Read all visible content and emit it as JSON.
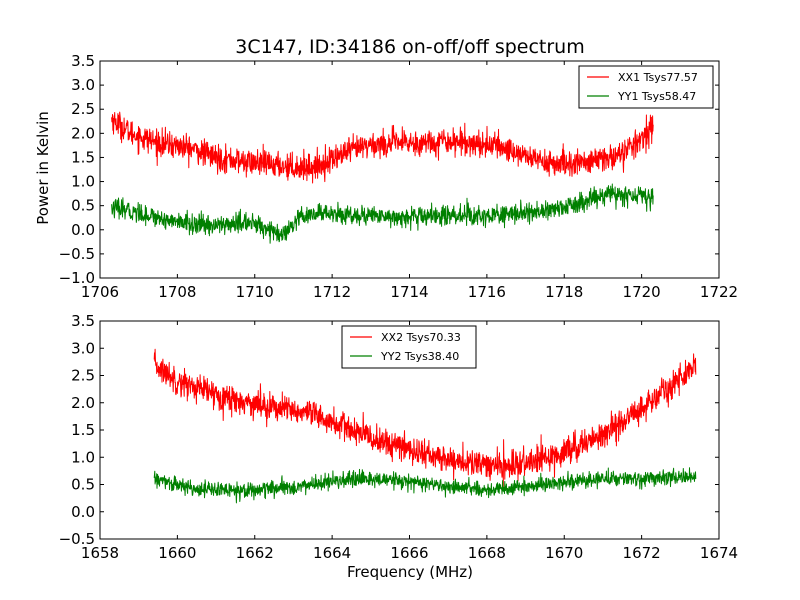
{
  "chart_data": [
    {
      "type": "line",
      "title": "3C147, ID:34186 on-off/off spectrum",
      "xlabel": "",
      "ylabel": "Power in Kelvin",
      "xlim": [
        1706,
        1722
      ],
      "ylim": [
        -1.0,
        3.5
      ],
      "xticks": [
        "1706",
        "1708",
        "1710",
        "1712",
        "1714",
        "1716",
        "1718",
        "1720",
        "1722"
      ],
      "yticks": [
        "−1.0",
        "−0.5",
        "0.0",
        "0.5",
        "1.0",
        "1.5",
        "2.0",
        "2.5",
        "3.0",
        "3.5"
      ],
      "legend_position": "top-right",
      "series": [
        {
          "name": "XX1 Tsys77.57",
          "color": "#ff0000",
          "noise": 0.27,
          "x": [
            1706.3,
            1706.8,
            1707.5,
            1708.3,
            1709.0,
            1709.8,
            1710.5,
            1711.0,
            1711.6,
            1712.2,
            1712.9,
            1713.6,
            1714.3,
            1715.0,
            1715.6,
            1716.2,
            1716.8,
            1717.3,
            1717.9,
            1718.5,
            1719.0,
            1719.5,
            1719.9,
            1720.3
          ],
          "y": [
            2.3,
            2.0,
            1.8,
            1.7,
            1.5,
            1.4,
            1.35,
            1.3,
            1.3,
            1.55,
            1.75,
            1.8,
            1.8,
            1.85,
            1.8,
            1.75,
            1.6,
            1.45,
            1.35,
            1.4,
            1.45,
            1.6,
            1.8,
            2.2
          ]
        },
        {
          "name": "YY1 Tsys58.47",
          "color": "#008000",
          "noise": 0.2,
          "x": [
            1706.3,
            1707.0,
            1707.8,
            1708.5,
            1709.2,
            1709.8,
            1710.3,
            1710.7,
            1711.2,
            1711.8,
            1712.5,
            1713.2,
            1714.0,
            1714.8,
            1715.6,
            1716.4,
            1717.2,
            1717.9,
            1718.6,
            1719.2,
            1719.8,
            1720.3
          ],
          "y": [
            0.45,
            0.35,
            0.2,
            0.1,
            0.1,
            0.15,
            0.05,
            -0.15,
            0.25,
            0.35,
            0.3,
            0.3,
            0.25,
            0.3,
            0.3,
            0.3,
            0.35,
            0.45,
            0.6,
            0.75,
            0.7,
            0.65
          ]
        }
      ]
    },
    {
      "type": "line",
      "title": "",
      "xlabel": "Frequency (MHz)",
      "ylabel": "",
      "xlim": [
        1658,
        1674
      ],
      "ylim": [
        -0.5,
        3.5
      ],
      "xticks": [
        "1658",
        "1660",
        "1662",
        "1664",
        "1666",
        "1668",
        "1670",
        "1672",
        "1674"
      ],
      "yticks": [
        "−0.5",
        "0.0",
        "0.5",
        "1.0",
        "1.5",
        "2.0",
        "2.5",
        "3.0",
        "3.5"
      ],
      "legend_position": "top-center",
      "series": [
        {
          "name": "XX2 Tsys70.33",
          "color": "#ff0000",
          "noise": 0.25,
          "x": [
            1659.4,
            1660.0,
            1660.8,
            1661.5,
            1662.3,
            1663.0,
            1663.8,
            1664.5,
            1665.2,
            1666.0,
            1666.7,
            1667.4,
            1668.0,
            1668.6,
            1669.2,
            1669.8,
            1670.5,
            1671.2,
            1671.8,
            1672.4,
            1672.9,
            1673.4
          ],
          "y": [
            2.7,
            2.4,
            2.2,
            2.05,
            1.95,
            1.85,
            1.7,
            1.5,
            1.3,
            1.15,
            1.0,
            0.9,
            0.85,
            0.85,
            0.9,
            1.05,
            1.25,
            1.5,
            1.8,
            2.1,
            2.4,
            2.7
          ]
        },
        {
          "name": "YY2 Tsys38.40",
          "color": "#008000",
          "noise": 0.14,
          "x": [
            1659.4,
            1660.2,
            1661.0,
            1662.0,
            1663.0,
            1664.0,
            1665.0,
            1666.0,
            1667.0,
            1668.0,
            1669.0,
            1670.0,
            1671.0,
            1672.0,
            1673.4
          ],
          "y": [
            0.6,
            0.45,
            0.4,
            0.4,
            0.45,
            0.55,
            0.6,
            0.55,
            0.45,
            0.4,
            0.45,
            0.55,
            0.6,
            0.6,
            0.65
          ]
        }
      ]
    }
  ]
}
